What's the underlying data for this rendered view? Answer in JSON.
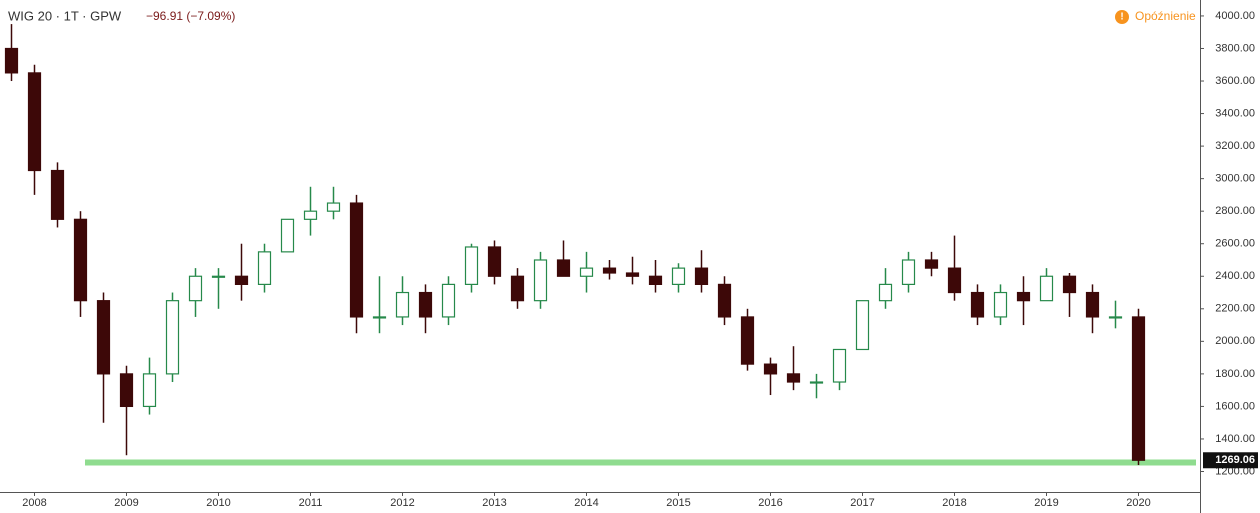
{
  "chart_data": {
    "type": "candlestick",
    "title": "WIG 20 · 1T · GPW",
    "change": "−96.91 (−7.09%)",
    "status": "Opóźnienie",
    "status_icon": "!",
    "categories": [
      null,
      "2008",
      null,
      null,
      null,
      "2009",
      null,
      null,
      null,
      "2010",
      null,
      null,
      null,
      "2011",
      null,
      null,
      null,
      "2012",
      null,
      null,
      null,
      "2013",
      null,
      null,
      null,
      "2014",
      null,
      null,
      null,
      "2015",
      null,
      null,
      null,
      "2016",
      null,
      null,
      null,
      "2017",
      null,
      null,
      null,
      "2018",
      null,
      null,
      null,
      "2019",
      null,
      null,
      null,
      "2020"
    ],
    "open": [
      3800,
      3650,
      3050,
      2750,
      2250,
      1800,
      1600,
      1800,
      2250,
      2400,
      2400,
      2350,
      2550,
      2750,
      2800,
      2850,
      2150,
      2150,
      2300,
      2150,
      2350,
      2580,
      2400,
      2250,
      2500,
      2400,
      2450,
      2420,
      2400,
      2350,
      2450,
      2350,
      2150,
      1860,
      1800,
      1750,
      1750,
      1950,
      2250,
      2350,
      2500,
      2450,
      2300,
      2150,
      2300,
      2250,
      2400,
      2300,
      2150,
      2150
    ],
    "high": [
      3950,
      3700,
      3100,
      2800,
      2300,
      1850,
      1900,
      2300,
      2450,
      2450,
      2600,
      2600,
      2750,
      2950,
      2950,
      2900,
      2400,
      2400,
      2350,
      2400,
      2600,
      2620,
      2450,
      2550,
      2620,
      2550,
      2500,
      2520,
      2500,
      2480,
      2560,
      2400,
      2200,
      1900,
      1970,
      1800,
      1950,
      2250,
      2450,
      2550,
      2550,
      2650,
      2350,
      2350,
      2400,
      2450,
      2420,
      2350,
      2250,
      2200
    ],
    "low": [
      3600,
      2900,
      2700,
      2150,
      1500,
      1300,
      1550,
      1750,
      2150,
      2200,
      2250,
      2300,
      2550,
      2650,
      2750,
      2050,
      2050,
      2100,
      2050,
      2100,
      2300,
      2350,
      2200,
      2200,
      2400,
      2300,
      2380,
      2350,
      2300,
      2300,
      2300,
      2100,
      1820,
      1670,
      1700,
      1650,
      1700,
      1950,
      2200,
      2300,
      2400,
      2250,
      2100,
      2100,
      2100,
      2250,
      2150,
      2050,
      2080,
      1240
    ],
    "close": [
      3650,
      3050,
      2750,
      2250,
      1800,
      1600,
      1800,
      2250,
      2400,
      2400,
      2350,
      2550,
      2750,
      2800,
      2850,
      2150,
      2150,
      2300,
      2150,
      2350,
      2580,
      2400,
      2250,
      2500,
      2400,
      2450,
      2420,
      2400,
      2350,
      2450,
      2350,
      2150,
      1860,
      1800,
      1750,
      1750,
      1950,
      2250,
      2350,
      2500,
      2450,
      2300,
      2150,
      2300,
      2250,
      2400,
      2300,
      2150,
      2150,
      1269.06
    ],
    "up_color": "#26894a",
    "down_color": "#3d0808",
    "support_line": 1255,
    "support_color": "#8fdc8f",
    "ylim": [
      1074,
      4098
    ],
    "yticks": [
      {
        "value": 1200,
        "label": "1200.00"
      },
      {
        "value": 1400,
        "label": "1400.00"
      },
      {
        "value": 1600,
        "label": "1600.00"
      },
      {
        "value": 1800,
        "label": "1800.00"
      },
      {
        "value": 2000,
        "label": "2000.00"
      },
      {
        "value": 2200,
        "label": "2200.00"
      },
      {
        "value": 2400,
        "label": "2400.00"
      },
      {
        "value": 2600,
        "label": "2600.00"
      },
      {
        "value": 2800,
        "label": "2800.00"
      },
      {
        "value": 3000,
        "label": "3000.00"
      },
      {
        "value": 3200,
        "label": "3200.00"
      },
      {
        "value": 3400,
        "label": "3400.00"
      },
      {
        "value": 3600,
        "label": "3600.00"
      },
      {
        "value": 3800,
        "label": "3800.00"
      },
      {
        "value": 4000,
        "label": "4000.00"
      }
    ]
  }
}
